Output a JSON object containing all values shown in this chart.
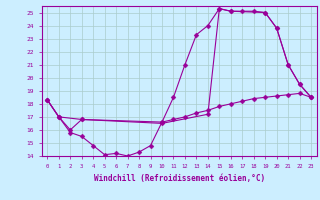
{
  "xlabel": "Windchill (Refroidissement éolien,°C)",
  "bg_color": "#cceeff",
  "grid_color": "#aacccc",
  "line_color": "#990099",
  "xlim": [
    -0.5,
    23.5
  ],
  "ylim": [
    14,
    25.5
  ],
  "xticks": [
    0,
    1,
    2,
    3,
    4,
    5,
    6,
    7,
    8,
    9,
    10,
    11,
    12,
    13,
    14,
    15,
    16,
    17,
    18,
    19,
    20,
    21,
    22,
    23
  ],
  "yticks": [
    14,
    15,
    16,
    17,
    18,
    19,
    20,
    21,
    22,
    23,
    24,
    25
  ],
  "line1_x": [
    0,
    1,
    2,
    3,
    4,
    5,
    6,
    7,
    8,
    9,
    10,
    11,
    12,
    13,
    14,
    15,
    16,
    17,
    18,
    19,
    20,
    21,
    22,
    23
  ],
  "line1_y": [
    18.3,
    17.0,
    15.8,
    15.5,
    14.8,
    14.1,
    14.2,
    14.0,
    14.3,
    14.8,
    16.6,
    18.5,
    21.0,
    23.3,
    24.0,
    25.3,
    25.1,
    25.1,
    25.1,
    25.0,
    23.8,
    21.0,
    19.5,
    18.5
  ],
  "line2_x": [
    0,
    1,
    2,
    3,
    10,
    11,
    12,
    13,
    14,
    15,
    16,
    17,
    18,
    19,
    20,
    21,
    22,
    23
  ],
  "line2_y": [
    18.3,
    17.0,
    16.0,
    16.8,
    16.6,
    16.8,
    17.0,
    17.3,
    17.5,
    17.8,
    18.0,
    18.2,
    18.4,
    18.5,
    18.6,
    18.7,
    18.8,
    18.5
  ],
  "line3_x": [
    0,
    1,
    3,
    10,
    14,
    15,
    16,
    19,
    20,
    21,
    22,
    23
  ],
  "line3_y": [
    18.3,
    17.0,
    16.8,
    16.5,
    17.2,
    25.3,
    25.1,
    25.0,
    23.8,
    21.0,
    19.5,
    18.5
  ]
}
